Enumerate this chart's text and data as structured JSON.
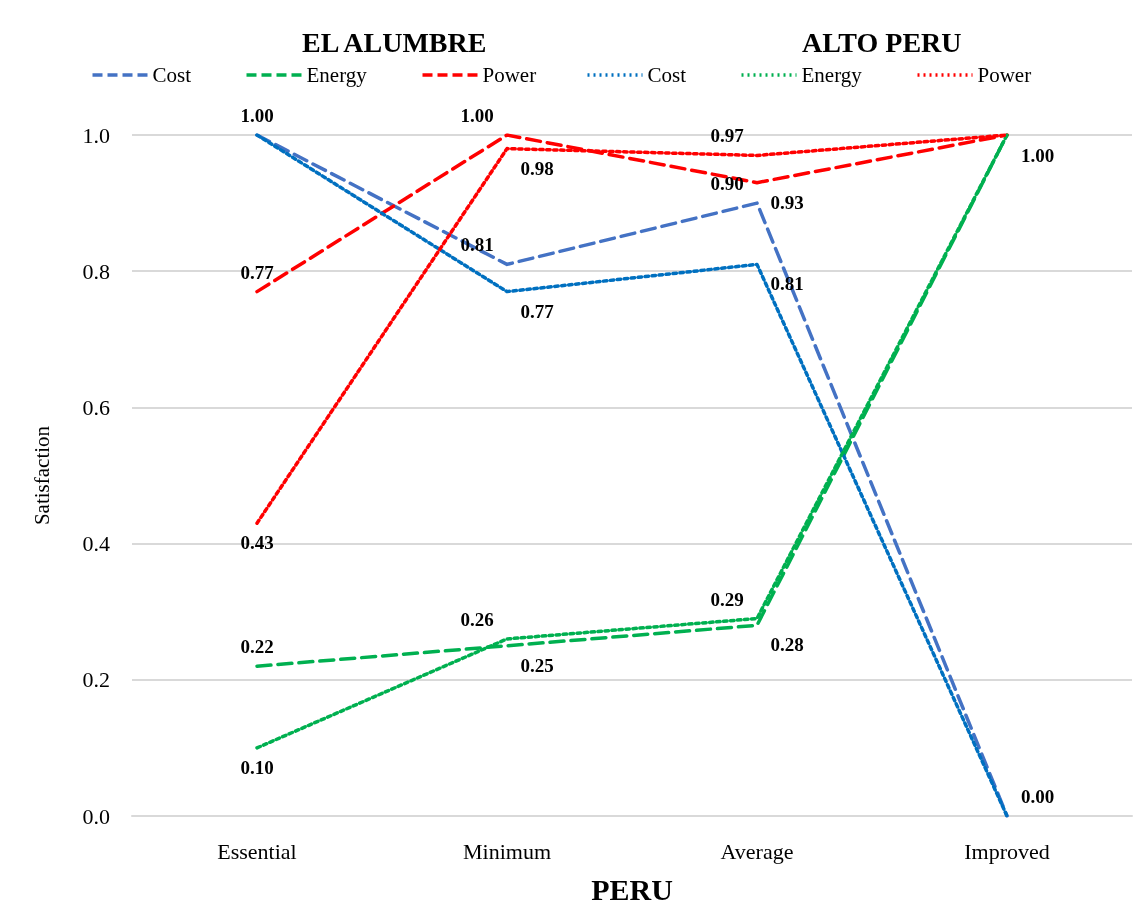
{
  "chart_data": {
    "type": "line",
    "xlabel": "PERU",
    "ylabel": "Satisfaction",
    "annotations": [
      "EL ALUMBRE",
      "ALTO PERU"
    ],
    "categories": [
      "Essential",
      "Minimum",
      "Average",
      "Improved"
    ],
    "ylim": [
      0,
      1
    ],
    "yticks": [
      {
        "value": 0,
        "label": "0.0"
      },
      {
        "value": 0.2,
        "label": "0.2"
      },
      {
        "value": 0.4,
        "label": "0.4"
      },
      {
        "value": 0.6,
        "label": "0.6"
      },
      {
        "value": 0.8,
        "label": "0.8"
      },
      {
        "value": 1,
        "label": "1.0"
      }
    ],
    "grid": "y",
    "legend": "top",
    "marker": "none",
    "series": [
      {
        "name": "Cost",
        "color": "#4472c4",
        "line_style": "dashed",
        "values": [
          1.0,
          0.81,
          0.9,
          0.0
        ],
        "value_labels": [
          "1.00",
          "0.81",
          "0.90",
          "0.00"
        ]
      },
      {
        "name": "Energy",
        "color": "#00b050",
        "line_style": "dashed",
        "values": [
          0.22,
          0.25,
          0.28,
          1.0
        ],
        "value_labels": [
          "0.22",
          "0.25",
          "0.28",
          "1.00"
        ]
      },
      {
        "name": "Power",
        "color": "#ff0000",
        "line_style": "dashed",
        "values": [
          0.77,
          1.0,
          0.93,
          1.0
        ],
        "value_labels": [
          "0.77",
          "1.00",
          "0.93",
          null
        ]
      },
      {
        "name": "Cost",
        "color": "#0070c0",
        "line_style": "dotted",
        "values": [
          1.0,
          0.77,
          0.81,
          0.0
        ],
        "value_labels": [
          null,
          "0.77",
          "0.81",
          null
        ]
      },
      {
        "name": "Energy",
        "color": "#00b050",
        "line_style": "dotted",
        "values": [
          0.1,
          0.26,
          0.29,
          1.0
        ],
        "value_labels": [
          "0.10",
          "0.26",
          "0.29",
          null
        ]
      },
      {
        "name": "Power",
        "color": "#ff0000",
        "line_style": "dotted",
        "values": [
          0.43,
          0.98,
          0.97,
          1.0
        ],
        "value_labels": [
          "0.43",
          "0.98",
          "0.97",
          null
        ]
      }
    ]
  }
}
